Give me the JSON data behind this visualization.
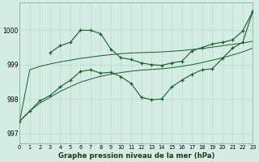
{
  "bg_color": "#d4ede4",
  "grid_color": "#b8d8cc",
  "line_color": "#1a5c2a",
  "title": "Graphe pression niveau de la mer (hPa)",
  "xlim": [
    0,
    23
  ],
  "ylim": [
    996.7,
    1000.8
  ],
  "yticks": [
    997,
    998,
    999,
    1000
  ],
  "xticks": [
    0,
    1,
    2,
    3,
    4,
    5,
    6,
    7,
    8,
    9,
    10,
    11,
    12,
    13,
    14,
    15,
    16,
    17,
    18,
    19,
    20,
    21,
    22,
    23
  ],
  "smooth_line1": [
    997.35,
    998.85,
    998.95,
    999.02,
    999.08,
    999.13,
    999.18,
    999.22,
    999.26,
    999.29,
    999.32,
    999.34,
    999.35,
    999.36,
    999.37,
    999.39,
    999.41,
    999.44,
    999.47,
    999.51,
    999.55,
    999.59,
    999.63,
    999.68
  ],
  "smooth_line2": [
    997.35,
    997.65,
    997.88,
    998.05,
    998.22,
    998.36,
    998.49,
    998.58,
    998.66,
    998.72,
    998.77,
    998.81,
    998.84,
    998.86,
    998.88,
    998.91,
    998.95,
    999.0,
    999.06,
    999.13,
    999.2,
    999.28,
    999.37,
    999.48
  ],
  "marked_upper_x": [
    3,
    4,
    5,
    6,
    7,
    8,
    9,
    10,
    11,
    12,
    13,
    14,
    15,
    16,
    17,
    18,
    19,
    20,
    21,
    22,
    23
  ],
  "marked_upper_y": [
    999.35,
    999.55,
    999.65,
    1000.0,
    1000.0,
    999.9,
    999.45,
    999.2,
    999.15,
    999.05,
    999.0,
    998.98,
    999.05,
    999.1,
    999.4,
    999.5,
    999.6,
    999.65,
    999.72,
    999.98,
    1000.55
  ],
  "marked_lower_x": [
    0,
    1,
    2,
    3,
    4,
    5,
    6,
    7,
    8,
    9,
    10,
    11,
    12,
    13,
    14,
    15,
    16,
    17,
    18,
    19,
    20,
    21,
    22,
    23
  ],
  "marked_lower_y": [
    997.35,
    997.65,
    997.95,
    998.1,
    998.35,
    998.55,
    998.8,
    998.85,
    998.75,
    998.78,
    998.65,
    998.45,
    998.05,
    997.98,
    998.0,
    998.35,
    998.55,
    998.72,
    998.85,
    998.88,
    999.18,
    999.48,
    999.65,
    1000.55
  ]
}
